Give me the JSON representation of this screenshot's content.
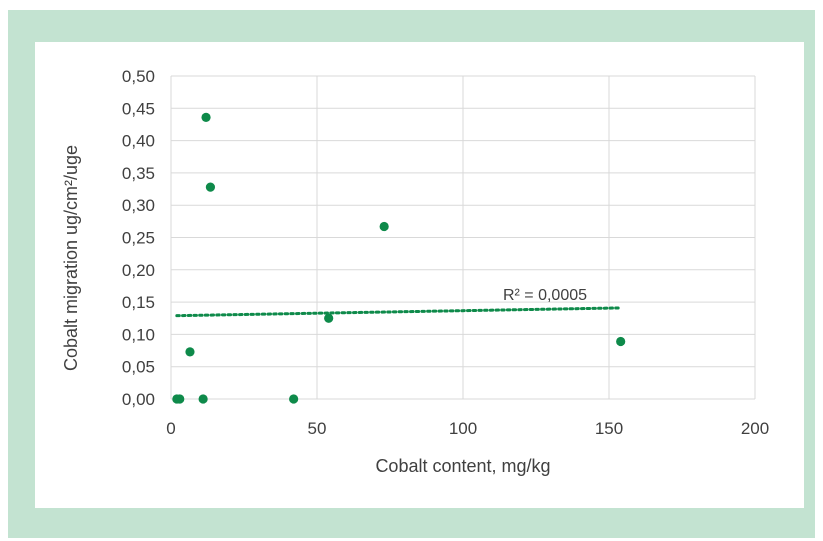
{
  "colors": {
    "frame": "#c3e3d1",
    "points": "#0e8a4a",
    "trendline": "#0e8a4a",
    "grid": "#d9d9d9",
    "text": "#404040"
  },
  "chart_data": {
    "type": "scatter",
    "title": "",
    "xlabel": "Cobalt content, mg/kg",
    "ylabel": "Cobalt migration ug/cm²/uge",
    "xlim": [
      0,
      200
    ],
    "ylim": [
      0,
      0.5
    ],
    "x_ticks": [
      0,
      50,
      100,
      150,
      200
    ],
    "x_tick_labels": [
      "0",
      "50",
      "100",
      "150",
      "200"
    ],
    "y_ticks": [
      0,
      0.05,
      0.1,
      0.15,
      0.2,
      0.25,
      0.3,
      0.35,
      0.4,
      0.45,
      0.5
    ],
    "y_tick_labels": [
      "0,00",
      "0,05",
      "0,10",
      "0,15",
      "0,20",
      "0,25",
      "0,30",
      "0,35",
      "0,40",
      "0,45",
      "0,50"
    ],
    "grid": true,
    "legend": "none",
    "points": [
      {
        "x": 2,
        "y": 0.0
      },
      {
        "x": 3,
        "y": 0.0
      },
      {
        "x": 6.5,
        "y": 0.073
      },
      {
        "x": 11,
        "y": 0.0
      },
      {
        "x": 12,
        "y": 0.436
      },
      {
        "x": 13.5,
        "y": 0.328
      },
      {
        "x": 42,
        "y": 0.0
      },
      {
        "x": 54,
        "y": 0.125
      },
      {
        "x": 73,
        "y": 0.267
      },
      {
        "x": 154,
        "y": 0.089
      }
    ],
    "trendline": {
      "style": "dotted",
      "x": [
        2,
        154
      ],
      "y": [
        0.129,
        0.141
      ],
      "label": "R² = 0,0005"
    }
  }
}
